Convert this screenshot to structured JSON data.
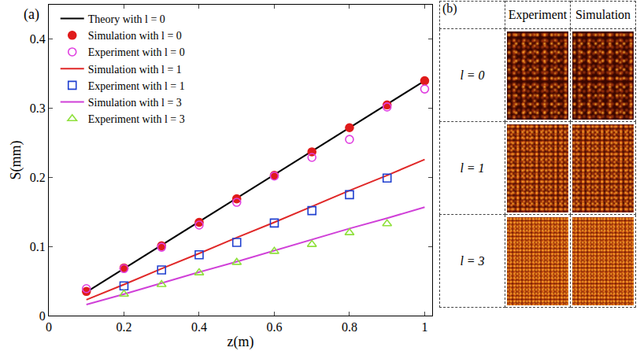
{
  "chart_data": {
    "type": "scatter",
    "x_label": "z(m)",
    "y_label": "S(mm)",
    "annotations": [
      "(a)"
    ],
    "x": [
      0.1,
      0.2,
      0.3,
      0.4,
      0.5,
      0.6,
      0.7,
      0.8,
      0.9,
      1.0
    ],
    "xlim": [
      0,
      1.02
    ],
    "xticks": [
      0,
      0.2,
      0.4,
      0.6,
      0.8,
      1
    ],
    "ylim": [
      0,
      0.45
    ],
    "yticks": [
      0,
      0.1,
      0.2,
      0.3,
      0.4
    ],
    "grid": false,
    "legend": "top-left",
    "series": [
      {
        "name": "Theory with l = 0",
        "type": "line",
        "line_style": "solid",
        "color": "#000000",
        "values": [
          0.034,
          0.068,
          0.102,
          0.136,
          0.17,
          0.204,
          0.238,
          0.272,
          0.306,
          0.34
        ]
      },
      {
        "name": "Simulation with l = 0",
        "type": "scatter",
        "marker": "circle",
        "color": "#e01b1b",
        "values": [
          0.035,
          0.069,
          0.101,
          0.135,
          0.169,
          0.203,
          0.237,
          0.272,
          0.305,
          0.34
        ]
      },
      {
        "name": "Experiment with l = 0",
        "type": "scatter",
        "marker": "circle-open",
        "color": "#e040e0",
        "values": [
          0.039,
          0.068,
          0.099,
          0.131,
          0.164,
          0.202,
          0.229,
          0.255,
          0.302,
          0.328
        ]
      },
      {
        "name": "Simulation with l = 1",
        "type": "line",
        "line_style": "solid",
        "color": "#e02828",
        "values": [
          0.023,
          0.045,
          0.068,
          0.09,
          0.113,
          0.135,
          0.158,
          0.181,
          0.203,
          0.226
        ]
      },
      {
        "name": "Experiment with l = 1",
        "type": "scatter",
        "marker": "square-open",
        "color": "#2040d0",
        "values": [
          null,
          0.043,
          0.066,
          0.088,
          0.106,
          0.134,
          0.152,
          0.175,
          0.199,
          null
        ]
      },
      {
        "name": "Simulation with l = 3",
        "type": "line",
        "line_style": "solid",
        "color": "#d040d8",
        "values": [
          0.016,
          0.031,
          0.047,
          0.063,
          0.078,
          0.094,
          0.11,
          0.126,
          0.141,
          0.157
        ]
      },
      {
        "name": "Experiment with l = 3",
        "type": "scatter",
        "marker": "triangle-up-open",
        "color": "#8fe03c",
        "values": [
          null,
          0.031,
          0.045,
          0.062,
          0.077,
          0.093,
          0.103,
          0.12,
          0.133,
          null
        ]
      }
    ]
  },
  "panel_b": {
    "label": "(b)",
    "columns": [
      "Experiment",
      "Simulation"
    ],
    "rows": [
      "l = 0",
      "l = 1",
      "l = 3"
    ]
  }
}
